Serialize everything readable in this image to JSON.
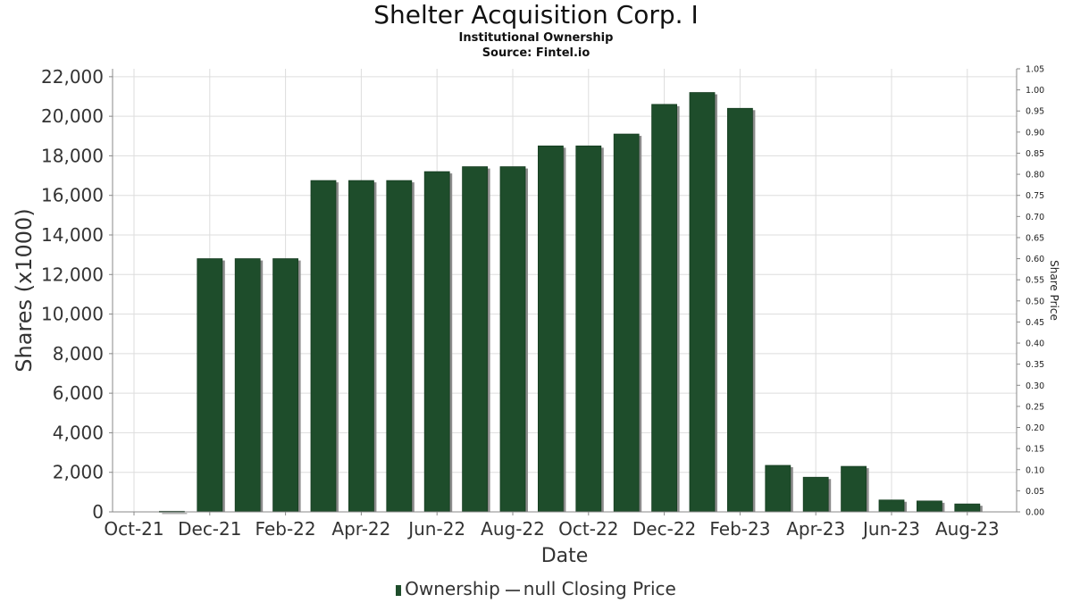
{
  "chart_data": {
    "type": "bar",
    "title": "Shelter Acquisition Corp. I",
    "subtitle": [
      "Institutional Ownership",
      "Source: Fintel.io"
    ],
    "xlabel": "Date",
    "ylabel": "Shares (x1000)",
    "y2label": "Share Price",
    "categories": [
      "Oct-21",
      "Nov-21",
      "Dec-21",
      "Jan-22",
      "Feb-22",
      "Mar-22",
      "Apr-22",
      "May-22",
      "Jun-22",
      "Jul-22",
      "Aug-22",
      "Sep-22",
      "Oct-22",
      "Nov-22",
      "Dec-22",
      "Jan-23",
      "Feb-23",
      "Mar-23",
      "Apr-23",
      "May-23",
      "Jun-23",
      "Jul-23",
      "Aug-23"
    ],
    "x_tick_labels": [
      "Oct-21",
      "Dec-21",
      "Feb-22",
      "Apr-22",
      "Jun-22",
      "Aug-22",
      "Oct-22",
      "Dec-22",
      "Feb-23",
      "Apr-23",
      "Jun-23",
      "Aug-23"
    ],
    "series": [
      {
        "name": "Ownership",
        "values": [
          null,
          30,
          12800,
          12800,
          12800,
          16750,
          16750,
          16750,
          17200,
          17450,
          17450,
          18500,
          18500,
          19100,
          20600,
          21200,
          20400,
          2350,
          1750,
          2300,
          600,
          550,
          400
        ]
      }
    ],
    "ylim": [
      0,
      22400
    ],
    "y_ticks": [
      "0",
      "2,000",
      "4,000",
      "6,000",
      "8,000",
      "10,000",
      "12,000",
      "14,000",
      "16,000",
      "18,000",
      "20,000",
      "22,000"
    ],
    "y2lim": [
      0,
      1.05
    ],
    "y2_ticks": [
      "0.00",
      "0.05",
      "0.10",
      "0.15",
      "0.20",
      "0.25",
      "0.30",
      "0.35",
      "0.40",
      "0.45",
      "0.50",
      "0.55",
      "0.60",
      "0.65",
      "0.70",
      "0.75",
      "0.80",
      "0.85",
      "0.90",
      "0.95",
      "1.00",
      "1.05"
    ],
    "grid": true,
    "legend_position": "bottom",
    "colors": {
      "bar": "#1e4d2b",
      "bar_shadow": "#8c8c8c",
      "grid": "#dddddd"
    }
  },
  "legend": {
    "ownership_label": "Ownership",
    "price_label": "null Closing Price"
  }
}
